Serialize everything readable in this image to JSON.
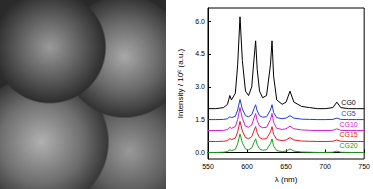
{
  "chart_data": {
    "type": "line",
    "xlabel": "λ (nm)",
    "ylabel": "Intensity / 10⁶ (a.u.)",
    "xlim": [
      550,
      750
    ],
    "xticks": [
      550,
      600,
      650,
      700,
      750
    ],
    "ylim": [
      -0.3,
      6.6
    ],
    "yticks": [
      {
        "value": 0,
        "label": "0.0"
      },
      1.5,
      {
        "value": 3,
        "label": "3.0"
      },
      4.5,
      {
        "value": 6,
        "label": "6.0"
      }
    ],
    "grid": false,
    "x": [
      550,
      560,
      570,
      575,
      578,
      580,
      585,
      588,
      591,
      594,
      598,
      602,
      606,
      609,
      611,
      613,
      616,
      620,
      625,
      630,
      632,
      634,
      638,
      645,
      650,
      655,
      660,
      670,
      680,
      690,
      700,
      710,
      715,
      720,
      730,
      740,
      750
    ],
    "series": [
      {
        "name": "CG0",
        "color": "#000000",
        "values": [
          2.0,
          2.0,
          2.05,
          2.2,
          2.6,
          2.4,
          2.7,
          4.0,
          6.2,
          4.2,
          2.8,
          2.6,
          3.0,
          4.3,
          5.1,
          3.8,
          2.8,
          2.5,
          2.6,
          4.0,
          5.1,
          3.5,
          2.4,
          2.2,
          2.3,
          2.8,
          2.3,
          2.1,
          2.05,
          2.0,
          2.0,
          2.05,
          2.3,
          2.05,
          2.0,
          2.0,
          2.0
        ]
      },
      {
        "name": "CG5",
        "color": "#1f3fd6",
        "values": [
          1.5,
          1.5,
          1.51,
          1.54,
          1.63,
          1.59,
          1.65,
          1.94,
          2.42,
          1.98,
          1.68,
          1.63,
          1.72,
          2.01,
          2.18,
          1.9,
          1.68,
          1.61,
          1.63,
          1.94,
          2.18,
          1.83,
          1.59,
          1.54,
          1.57,
          1.68,
          1.57,
          1.52,
          1.51,
          1.5,
          1.5,
          1.51,
          1.57,
          1.51,
          1.5,
          1.5,
          1.5
        ]
      },
      {
        "name": "CG10",
        "color": "#d020d0",
        "values": [
          1.0,
          1.0,
          1.01,
          1.05,
          1.15,
          1.1,
          1.18,
          1.5,
          2.05,
          1.55,
          1.2,
          1.15,
          1.25,
          1.58,
          1.78,
          1.45,
          1.2,
          1.13,
          1.15,
          1.5,
          1.78,
          1.38,
          1.1,
          1.05,
          1.08,
          1.2,
          1.08,
          1.03,
          1.01,
          1.0,
          1.0,
          1.01,
          1.08,
          1.01,
          1.0,
          1.0,
          1.0
        ]
      },
      {
        "name": "CG15",
        "color": "#e02020",
        "values": [
          0.5,
          0.5,
          0.51,
          0.54,
          0.63,
          0.59,
          0.65,
          0.94,
          1.42,
          0.98,
          0.68,
          0.63,
          0.72,
          1.01,
          1.18,
          0.9,
          0.68,
          0.61,
          0.63,
          0.94,
          1.18,
          0.83,
          0.59,
          0.54,
          0.57,
          0.68,
          0.57,
          0.52,
          0.51,
          0.5,
          0.5,
          0.51,
          0.57,
          0.51,
          0.5,
          0.5,
          0.5
        ]
      },
      {
        "name": "CG20",
        "color": "#20a020",
        "values": [
          0,
          0,
          0.01,
          0.04,
          0.12,
          0.08,
          0.14,
          0.4,
          0.84,
          0.44,
          0.16,
          0.12,
          0.2,
          0.46,
          0.62,
          0.36,
          0.16,
          0.1,
          0.12,
          0.4,
          0.62,
          0.3,
          0.08,
          0.04,
          0.06,
          0.16,
          0.06,
          0.02,
          0.01,
          0,
          0,
          0.01,
          0.06,
          0.01,
          0,
          0,
          0
        ]
      }
    ]
  }
}
